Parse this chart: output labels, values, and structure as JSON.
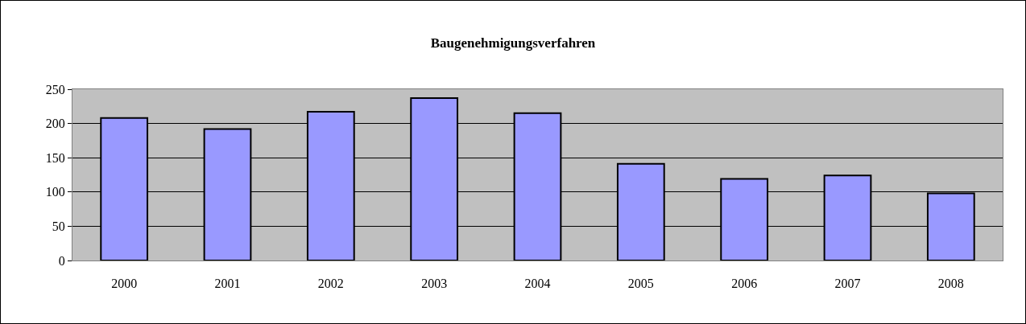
{
  "chart_data": {
    "type": "bar",
    "title": "Baugenehmigungsverfahren",
    "categories": [
      "2000",
      "2001",
      "2002",
      "2003",
      "2004",
      "2005",
      "2006",
      "2007",
      "2008"
    ],
    "values": [
      208,
      192,
      217,
      237,
      215,
      141,
      119,
      124,
      98
    ],
    "color": "#9999ff",
    "ylim": [
      0,
      250
    ],
    "yticks": [
      0,
      50,
      100,
      150,
      200,
      250
    ],
    "grid": "y"
  }
}
